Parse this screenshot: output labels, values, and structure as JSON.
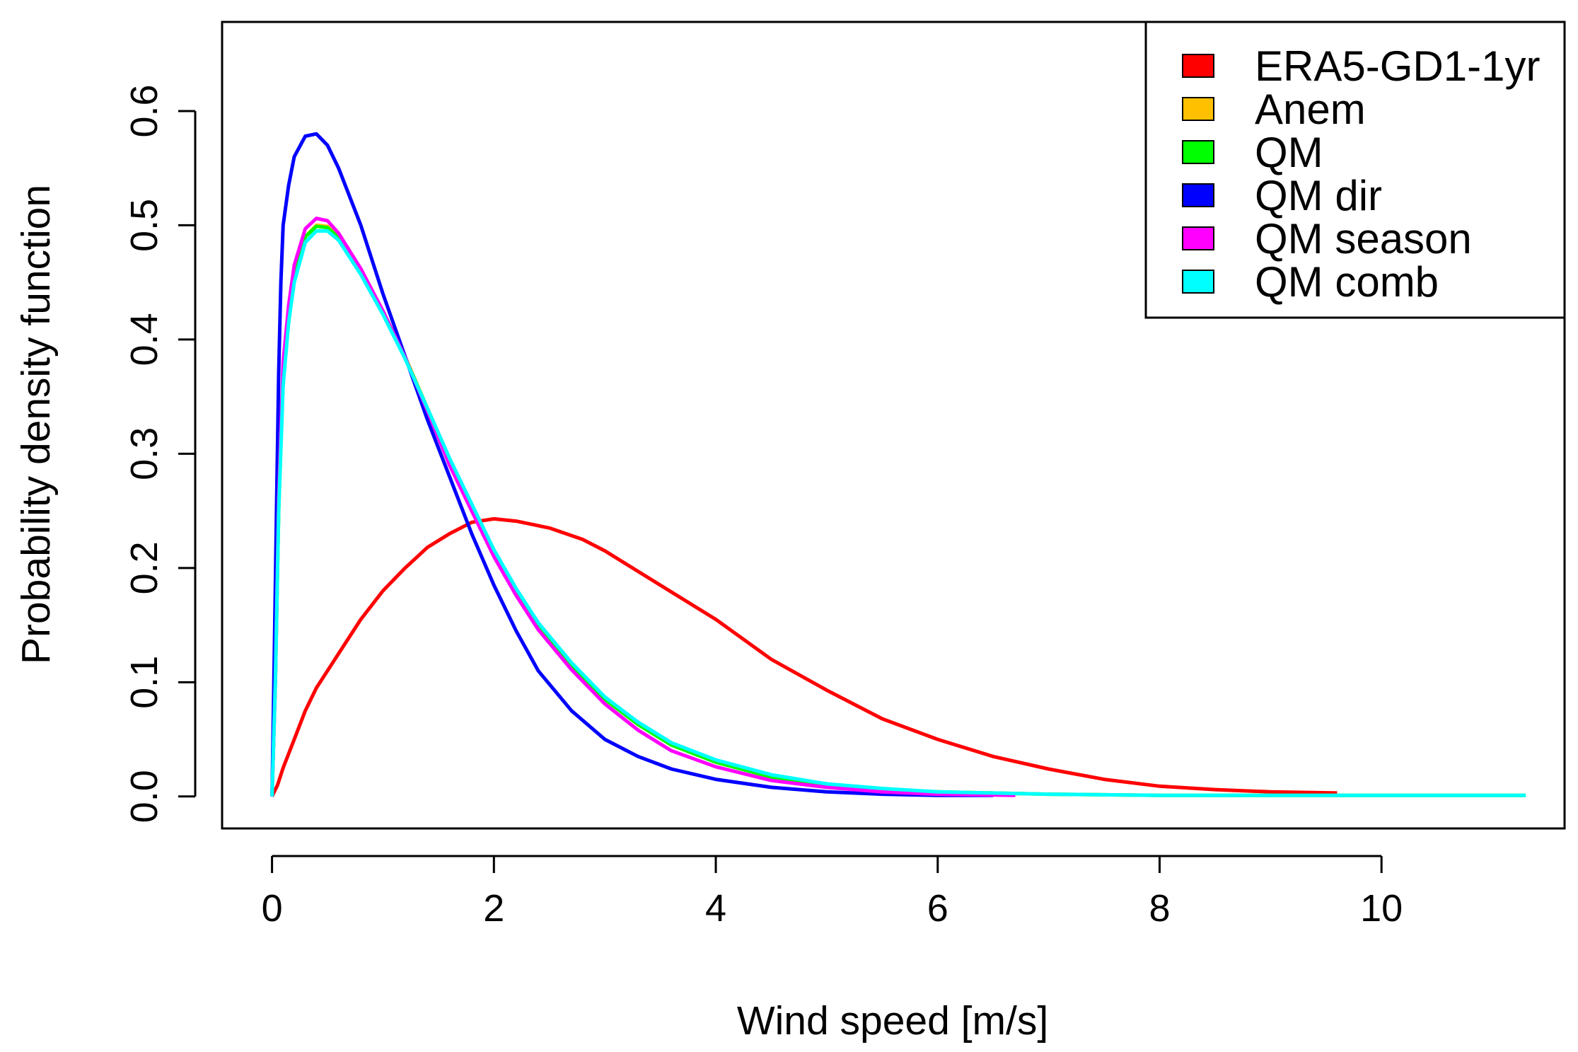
{
  "chart_data": {
    "type": "line",
    "xlabel": "Wind speed [m/s]",
    "ylabel": "Probability density function",
    "xlim": [
      -0.45,
      11.65
    ],
    "ylim": [
      -0.028,
      0.678
    ],
    "x_ticks": [
      0,
      2,
      4,
      6,
      8,
      10
    ],
    "x_tick_labels": [
      "0",
      "2",
      "4",
      "6",
      "8",
      "10"
    ],
    "y_ticks": [
      0.0,
      0.1,
      0.2,
      0.3,
      0.4,
      0.5,
      0.6
    ],
    "y_tick_labels": [
      "0.0",
      "0.1",
      "0.2",
      "0.3",
      "0.4",
      "0.5",
      "0.6"
    ],
    "legend_position": "top-right",
    "series": [
      {
        "name": "ERA5-GD1-1yr",
        "color": "#ff0000",
        "x": [
          0,
          0.05,
          0.1,
          0.2,
          0.3,
          0.4,
          0.5,
          0.6,
          0.8,
          1.0,
          1.2,
          1.4,
          1.6,
          1.8,
          2.0,
          2.2,
          2.5,
          2.8,
          3.0,
          3.5,
          4.0,
          4.5,
          5.0,
          5.5,
          6.0,
          6.5,
          7.0,
          7.5,
          8.0,
          8.5,
          9.0,
          9.6
        ],
        "y": [
          0.0,
          0.01,
          0.025,
          0.05,
          0.075,
          0.095,
          0.11,
          0.125,
          0.155,
          0.18,
          0.2,
          0.218,
          0.23,
          0.24,
          0.243,
          0.241,
          0.235,
          0.225,
          0.215,
          0.185,
          0.155,
          0.12,
          0.093,
          0.068,
          0.05,
          0.035,
          0.024,
          0.015,
          0.009,
          0.006,
          0.004,
          0.003
        ]
      },
      {
        "name": "Anem",
        "color": "#ffc000",
        "x": [
          0,
          0.03,
          0.06,
          0.1,
          0.15,
          0.2,
          0.3,
          0.4,
          0.5,
          0.6,
          0.8,
          1.0,
          1.2,
          1.4,
          1.6,
          1.8,
          2.0,
          2.2,
          2.4,
          2.7,
          3.0,
          3.3,
          3.6,
          4.0,
          4.5,
          5.0,
          5.5,
          6.0,
          7.0,
          8.0,
          9.0,
          10.0,
          11.3
        ],
        "y": [
          0.0,
          0.1,
          0.25,
          0.37,
          0.42,
          0.455,
          0.49,
          0.5,
          0.499,
          0.49,
          0.46,
          0.425,
          0.385,
          0.34,
          0.295,
          0.255,
          0.215,
          0.18,
          0.15,
          0.115,
          0.085,
          0.063,
          0.045,
          0.03,
          0.017,
          0.01,
          0.006,
          0.004,
          0.002,
          0.001,
          0.001,
          0.001,
          0.001
        ]
      },
      {
        "name": "QM",
        "color": "#00ff00",
        "x": [
          0,
          0.03,
          0.06,
          0.1,
          0.15,
          0.2,
          0.3,
          0.4,
          0.5,
          0.6,
          0.8,
          1.0,
          1.2,
          1.4,
          1.6,
          1.8,
          2.0,
          2.2,
          2.4,
          2.7,
          3.0,
          3.3,
          3.6,
          4.0,
          4.5,
          5.0,
          5.5,
          6.0,
          7.0,
          8.0,
          9.0,
          10.0,
          11.3
        ],
        "y": [
          0.0,
          0.1,
          0.25,
          0.365,
          0.42,
          0.455,
          0.49,
          0.499,
          0.498,
          0.489,
          0.459,
          0.424,
          0.384,
          0.34,
          0.295,
          0.254,
          0.214,
          0.18,
          0.15,
          0.115,
          0.085,
          0.063,
          0.045,
          0.03,
          0.017,
          0.01,
          0.006,
          0.004,
          0.002,
          0.001,
          0.001,
          0.001,
          0.001
        ]
      },
      {
        "name": "QM dir",
        "color": "#0000ff",
        "x": [
          0,
          0.02,
          0.04,
          0.06,
          0.08,
          0.1,
          0.15,
          0.2,
          0.3,
          0.4,
          0.5,
          0.6,
          0.8,
          1.0,
          1.2,
          1.4,
          1.6,
          1.8,
          2.0,
          2.2,
          2.4,
          2.7,
          3.0,
          3.3,
          3.6,
          4.0,
          4.5,
          5.0,
          5.5,
          6.0,
          6.5
        ],
        "y": [
          0.0,
          0.12,
          0.25,
          0.37,
          0.45,
          0.5,
          0.535,
          0.56,
          0.578,
          0.58,
          0.57,
          0.55,
          0.5,
          0.44,
          0.385,
          0.33,
          0.28,
          0.23,
          0.185,
          0.145,
          0.11,
          0.075,
          0.05,
          0.035,
          0.024,
          0.015,
          0.008,
          0.004,
          0.002,
          0.001,
          0.001
        ]
      },
      {
        "name": "QM season",
        "color": "#ff00ff",
        "x": [
          0,
          0.03,
          0.06,
          0.1,
          0.15,
          0.2,
          0.3,
          0.4,
          0.5,
          0.6,
          0.8,
          1.0,
          1.2,
          1.4,
          1.6,
          1.8,
          2.0,
          2.2,
          2.4,
          2.7,
          3.0,
          3.3,
          3.6,
          4.0,
          4.5,
          5.0,
          5.5,
          6.0,
          6.7
        ],
        "y": [
          0.0,
          0.1,
          0.26,
          0.38,
          0.43,
          0.465,
          0.497,
          0.506,
          0.504,
          0.493,
          0.462,
          0.425,
          0.384,
          0.338,
          0.29,
          0.25,
          0.21,
          0.176,
          0.146,
          0.111,
          0.081,
          0.058,
          0.04,
          0.026,
          0.014,
          0.008,
          0.004,
          0.002,
          0.001
        ]
      },
      {
        "name": "QM comb",
        "color": "#00ffff",
        "x": [
          0,
          0.03,
          0.06,
          0.1,
          0.15,
          0.2,
          0.3,
          0.4,
          0.5,
          0.6,
          0.8,
          1.0,
          1.2,
          1.4,
          1.6,
          1.8,
          2.0,
          2.2,
          2.4,
          2.7,
          3.0,
          3.3,
          3.6,
          4.0,
          4.5,
          5.0,
          5.5,
          6.0,
          7.0,
          8.0,
          9.0,
          10.0,
          11.3
        ],
        "y": [
          0.0,
          0.1,
          0.25,
          0.36,
          0.415,
          0.45,
          0.485,
          0.495,
          0.495,
          0.487,
          0.457,
          0.422,
          0.383,
          0.34,
          0.296,
          0.256,
          0.216,
          0.182,
          0.152,
          0.117,
          0.087,
          0.065,
          0.047,
          0.032,
          0.019,
          0.011,
          0.007,
          0.004,
          0.002,
          0.001,
          0.001,
          0.001,
          0.001
        ]
      }
    ]
  }
}
